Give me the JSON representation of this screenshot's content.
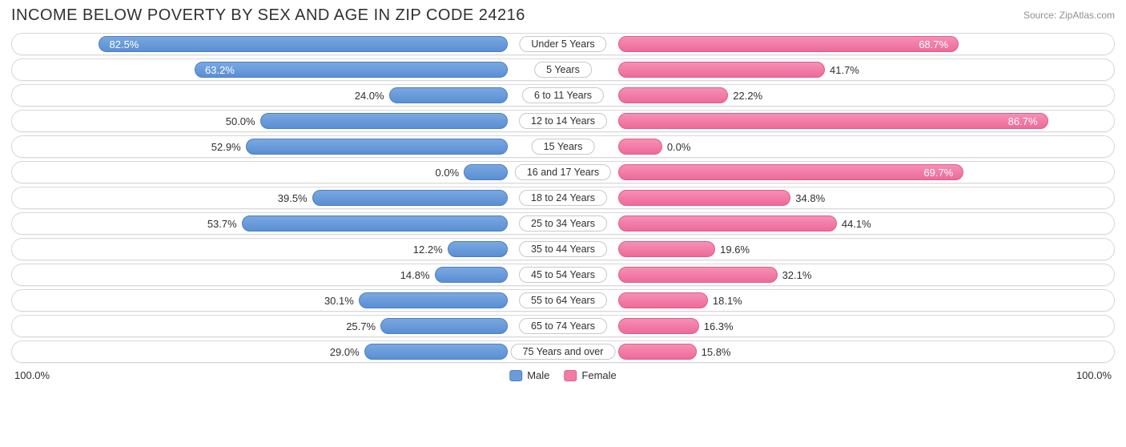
{
  "title": "INCOME BELOW POVERTY BY SEX AND AGE IN ZIP CODE 24216",
  "source": "Source: ZipAtlas.com",
  "axis_max_label": "100.0%",
  "legend": {
    "male": "Male",
    "female": "Female"
  },
  "chart": {
    "type": "diverging-bar",
    "male_color": "#6b9cd9",
    "female_color": "#f17ba5",
    "row_border_color": "#d8d8d8",
    "background_color": "#ffffff",
    "label_fontsize": 13,
    "title_fontsize": 20,
    "max_percent": 100.0,
    "inside_threshold": 60.0,
    "rows": [
      {
        "category": "Under 5 Years",
        "male": 82.5,
        "female": 68.7
      },
      {
        "category": "5 Years",
        "male": 63.2,
        "female": 41.7
      },
      {
        "category": "6 to 11 Years",
        "male": 24.0,
        "female": 22.2
      },
      {
        "category": "12 to 14 Years",
        "male": 50.0,
        "female": 86.7
      },
      {
        "category": "15 Years",
        "male": 52.9,
        "female": 0.0
      },
      {
        "category": "16 and 17 Years",
        "male": 0.0,
        "female": 69.7
      },
      {
        "category": "18 to 24 Years",
        "male": 39.5,
        "female": 34.8
      },
      {
        "category": "25 to 34 Years",
        "male": 53.7,
        "female": 44.1
      },
      {
        "category": "35 to 44 Years",
        "male": 12.2,
        "female": 19.6
      },
      {
        "category": "45 to 54 Years",
        "male": 14.8,
        "female": 32.1
      },
      {
        "category": "55 to 64 Years",
        "male": 30.1,
        "female": 18.1
      },
      {
        "category": "65 to 74 Years",
        "male": 25.7,
        "female": 16.3
      },
      {
        "category": "75 Years and over",
        "male": 29.0,
        "female": 15.8
      }
    ]
  }
}
